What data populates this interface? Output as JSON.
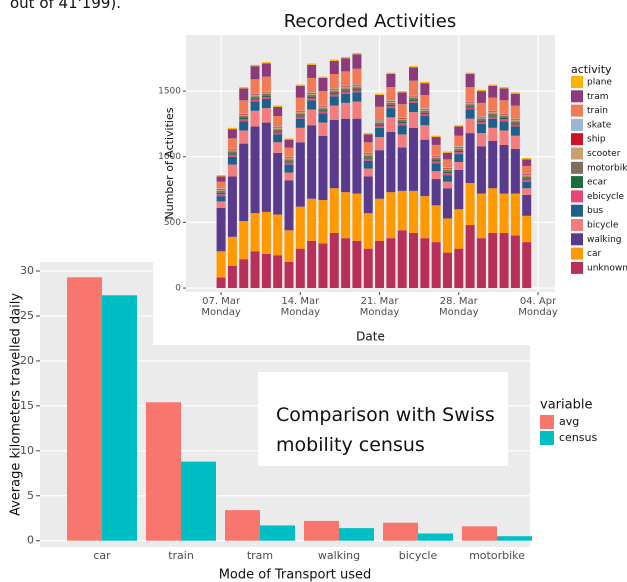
{
  "page_text": "out of 41'199).",
  "chart_data": [
    {
      "type": "stacked-bar",
      "title": "Recorded Activities",
      "x_label": "Date",
      "y_label": "Number of Activities",
      "x": [
        0,
        1,
        2,
        3,
        4,
        5,
        6,
        7,
        8,
        9,
        10,
        11,
        12,
        13,
        14,
        15,
        16,
        17,
        18,
        19,
        20,
        21,
        22,
        23,
        24,
        25,
        26,
        27
      ],
      "xlim": [
        -3.1,
        29.5
      ],
      "xticks": [
        {
          "value": 0,
          "label": "07. Mar\nMonday"
        },
        {
          "value": 7,
          "label": "14. Mar\nMonday"
        },
        {
          "value": 14,
          "label": "21. Mar\nMonday"
        },
        {
          "value": 21,
          "label": "28. Mar\nMonday"
        },
        {
          "value": 28,
          "label": "04. Apr\nMonday"
        }
      ],
      "ylim": [
        -30,
        1927
      ],
      "yticks": [
        0,
        500,
        1000,
        1500
      ],
      "grid": true,
      "legend_title": "activity",
      "series": [
        {
          "name": "unknown",
          "color": "#b8305a",
          "values": [
            80,
            170,
            220,
            280,
            260,
            250,
            200,
            300,
            360,
            340,
            420,
            380,
            360,
            300,
            360,
            380,
            440,
            420,
            380,
            350,
            270,
            300,
            480,
            380,
            420,
            420,
            400,
            350
          ]
        },
        {
          "name": "car",
          "color": "#ff9900",
          "values": [
            200,
            220,
            290,
            290,
            320,
            310,
            240,
            320,
            320,
            330,
            340,
            350,
            360,
            270,
            320,
            350,
            300,
            320,
            320,
            280,
            260,
            300,
            320,
            340,
            340,
            300,
            320,
            200
          ]
        },
        {
          "name": "walking",
          "color": "#5a3a8c",
          "values": [
            330,
            460,
            590,
            660,
            680,
            470,
            380,
            490,
            560,
            490,
            520,
            560,
            570,
            280,
            370,
            460,
            330,
            480,
            430,
            200,
            230,
            300,
            380,
            360,
            360,
            370,
            340,
            160
          ]
        },
        {
          "name": "bicycle",
          "color": "#f47c7c",
          "values": [
            50,
            90,
            100,
            120,
            110,
            80,
            60,
            110,
            120,
            100,
            110,
            120,
            130,
            60,
            100,
            110,
            100,
            120,
            110,
            60,
            50,
            60,
            110,
            100,
            100,
            110,
            100,
            50
          ]
        },
        {
          "name": "bus",
          "color": "#1f5f8b",
          "values": [
            40,
            60,
            70,
            70,
            70,
            60,
            60,
            70,
            70,
            70,
            70,
            70,
            70,
            60,
            70,
            70,
            70,
            70,
            70,
            60,
            50,
            60,
            70,
            70,
            70,
            70,
            70,
            50
          ]
        },
        {
          "name": "ebicycle",
          "color": "#e8457a",
          "values": [
            15,
            15,
            15,
            15,
            15,
            15,
            15,
            15,
            15,
            15,
            15,
            15,
            15,
            15,
            15,
            15,
            15,
            15,
            15,
            15,
            15,
            15,
            15,
            15,
            15,
            15,
            15,
            15
          ]
        },
        {
          "name": "ecar",
          "color": "#1b6e3a",
          "values": [
            10,
            10,
            10,
            10,
            10,
            10,
            10,
            10,
            10,
            10,
            10,
            10,
            10,
            10,
            10,
            10,
            10,
            10,
            10,
            10,
            10,
            10,
            10,
            10,
            10,
            10,
            10,
            10
          ]
        },
        {
          "name": "motorbike",
          "color": "#7d6e60",
          "values": [
            15,
            15,
            15,
            15,
            15,
            15,
            15,
            15,
            15,
            15,
            15,
            15,
            15,
            15,
            15,
            15,
            15,
            15,
            15,
            15,
            15,
            15,
            15,
            15,
            15,
            15,
            15,
            15
          ]
        },
        {
          "name": "scooter",
          "color": "#c9a070",
          "values": [
            10,
            10,
            10,
            10,
            10,
            10,
            10,
            10,
            10,
            10,
            10,
            10,
            10,
            10,
            10,
            10,
            10,
            10,
            10,
            10,
            10,
            10,
            10,
            10,
            10,
            10,
            10,
            10
          ]
        },
        {
          "name": "ship",
          "color": "#cc1426",
          "values": [
            5,
            5,
            5,
            5,
            5,
            5,
            5,
            5,
            5,
            5,
            5,
            5,
            5,
            5,
            5,
            5,
            5,
            5,
            5,
            5,
            5,
            5,
            5,
            5,
            5,
            5,
            5,
            5
          ]
        },
        {
          "name": "skate",
          "color": "#9cb6d6",
          "values": [
            5,
            5,
            5,
            5,
            5,
            5,
            5,
            5,
            5,
            5,
            5,
            5,
            5,
            5,
            5,
            5,
            5,
            5,
            5,
            5,
            5,
            5,
            5,
            5,
            5,
            5,
            5,
            5
          ]
        },
        {
          "name": "train",
          "color": "#f27a55",
          "values": [
            50,
            80,
            100,
            110,
            110,
            80,
            70,
            100,
            110,
            110,
            110,
            110,
            120,
            80,
            100,
            100,
            100,
            110,
            100,
            80,
            60,
            80,
            110,
            100,
            100,
            100,
            100,
            60
          ]
        },
        {
          "name": "tram",
          "color": "#8c3a7c",
          "values": [
            40,
            70,
            90,
            100,
            100,
            70,
            60,
            90,
            100,
            100,
            100,
            100,
            110,
            60,
            90,
            100,
            90,
            100,
            90,
            60,
            50,
            70,
            100,
            90,
            90,
            90,
            90,
            50
          ]
        },
        {
          "name": "plane",
          "color": "#ffb300",
          "values": [
            10,
            10,
            10,
            10,
            10,
            10,
            10,
            10,
            10,
            10,
            10,
            10,
            10,
            10,
            10,
            10,
            10,
            10,
            10,
            10,
            10,
            10,
            10,
            10,
            10,
            10,
            10,
            10
          ]
        }
      ]
    },
    {
      "type": "grouped-bar",
      "x_label": "Mode of Transport used",
      "y_label": "Average kilometers travelled daily",
      "categories": [
        "car",
        "train",
        "tram",
        "walking",
        "bicycle",
        "motorbike"
      ],
      "ylim": [
        -0.7,
        31
      ],
      "yticks": [
        0,
        5,
        10,
        15,
        20,
        25,
        30
      ],
      "grid": true,
      "legend_title": "variable",
      "annotation": "Comparison with Swiss mobility census",
      "series": [
        {
          "name": "avg",
          "color": "#f8766d",
          "values": [
            29.3,
            15.4,
            3.4,
            2.2,
            2.0,
            1.6
          ]
        },
        {
          "name": "census",
          "color": "#00bfc4",
          "values": [
            27.3,
            8.8,
            1.7,
            1.4,
            0.8,
            0.5
          ]
        }
      ]
    }
  ]
}
